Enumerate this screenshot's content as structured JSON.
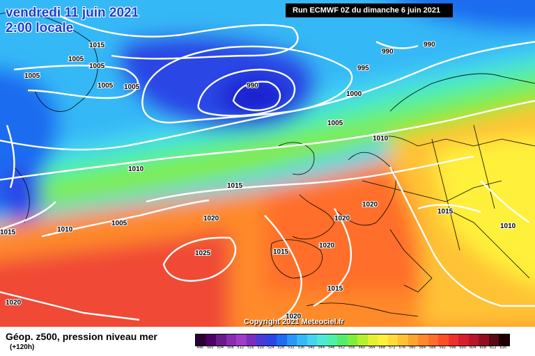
{
  "header": {
    "date_line": "vendredi 11 juin 2021",
    "time_line": "2:00 locale",
    "run_info": "Run ECMWF 0Z du dimanche 6 juin 2021"
  },
  "copyright": "Copyright 2021 Meteociel.fr",
  "legend": {
    "title": "Géop. z500, pression niveau mer",
    "subtitle": "(+120h)",
    "scale_values": [
      "496",
      "500",
      "504",
      "508",
      "512",
      "516",
      "520",
      "524",
      "528",
      "532",
      "536",
      "540",
      "544",
      "548",
      "552",
      "556",
      "560",
      "564",
      "568",
      "572",
      "576",
      "580",
      "584",
      "588",
      "592",
      "596",
      "600",
      "604",
      "608",
      "612",
      "616"
    ],
    "scale_colors": [
      "#2a0033",
      "#4d0066",
      "#6b1a8a",
      "#8a2db0",
      "#a03cc8",
      "#7a2ec0",
      "#4b3ad6",
      "#2a46e6",
      "#1f6cf0",
      "#2a96f5",
      "#36b8f6",
      "#44d4f2",
      "#4ee8d8",
      "#4ef0a8",
      "#54ec6c",
      "#82ec3c",
      "#b6ee30",
      "#e6f032",
      "#fff03a",
      "#ffdc3a",
      "#ffc234",
      "#ffa42e",
      "#ff8a2a",
      "#ff6e2a",
      "#ff4e2a",
      "#f0302e",
      "#d81e2e",
      "#b8142a",
      "#901022",
      "#5a0a14",
      "#1a0004"
    ]
  },
  "map": {
    "isobar_labels": [
      {
        "id": "1015",
        "text": "1015"
      },
      {
        "id": "1005",
        "text": "1005"
      },
      {
        "id": "990",
        "text": "990"
      },
      {
        "id": "995",
        "text": "995"
      },
      {
        "id": "1000",
        "text": "1000"
      },
      {
        "id": "1010",
        "text": "1010"
      },
      {
        "id": "1020",
        "text": "1020"
      },
      {
        "id": "1025",
        "text": "1025"
      }
    ]
  }
}
